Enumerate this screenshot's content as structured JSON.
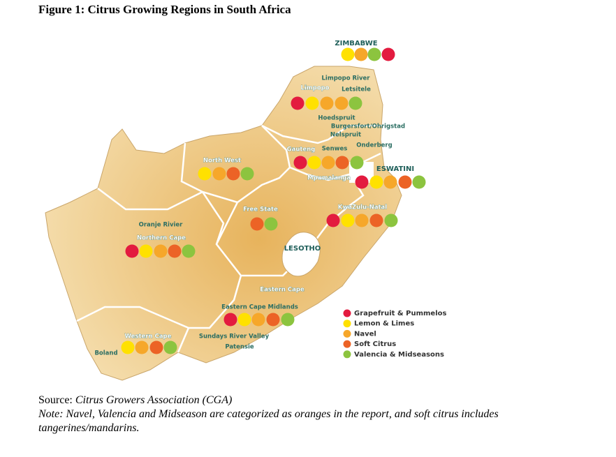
{
  "title": "Figure 1: Citrus Growing Regions in South Africa",
  "map_labels": [
    "ZIMBABWE",
    "Limpopo River",
    "Limpopo",
    "Letsitele",
    "Hoedspruit",
    "Burgersfort/Ohrigstad",
    "Nelspruit",
    "Gauteng",
    "Senwes",
    "Onderberg",
    "ESWATINI",
    "North West",
    "Mpumalanga",
    "Free State",
    "KwaZulu-Natal",
    "Oranje Rivier",
    "Northern Cape",
    "LESOTHO",
    "Eastern Cape",
    "Eastern Cape Midlands",
    "Western Cape",
    "Sundays River Valley",
    "Patensie",
    "Boland"
  ],
  "legend": [
    {
      "label": "Grapefruit & Pummelos",
      "color": "#e31b3f"
    },
    {
      "label": "Lemon & Limes",
      "color": "#ffe100"
    },
    {
      "label": "Navel",
      "color": "#f6a72a"
    },
    {
      "label": "Soft Citrus",
      "color": "#ec6326"
    },
    {
      "label": "Valencia & Midseasons",
      "color": "#8cc43f"
    }
  ],
  "source": {
    "prefix": "Source:",
    "name": "Citrus Growers Association (CGA)"
  },
  "note": "Note: Navel, Valencia and Midseason are categorized as oranges in the report, and soft citrus includes tangerines/mandarins."
}
